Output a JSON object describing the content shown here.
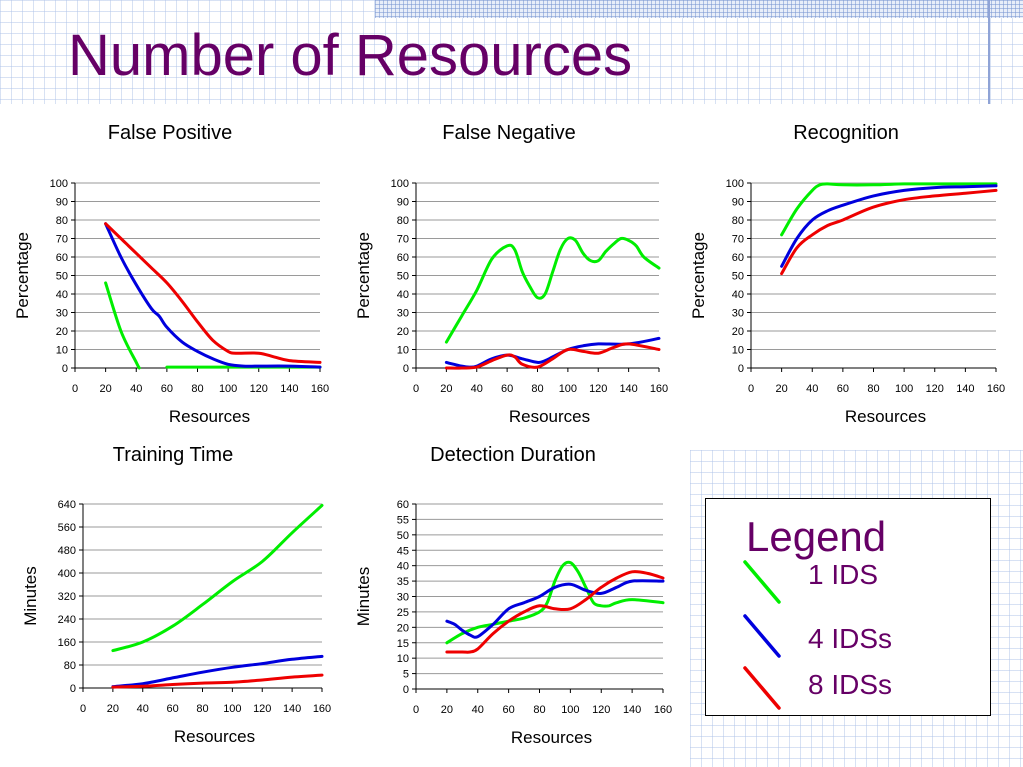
{
  "slide": {
    "title": "Number of Resources"
  },
  "colors": {
    "1 IDS": "#00ee00",
    "4 IDSs": "#0000dd",
    "8 IDSs": "#ee0000",
    "title": "#660066"
  },
  "legend": {
    "title": "Legend",
    "items": [
      {
        "label": "1 IDS",
        "color": "#00ee00"
      },
      {
        "label": "4 IDSs",
        "color": "#0000dd"
      },
      {
        "label": "8 IDSs",
        "color": "#ee0000"
      }
    ]
  },
  "chart_data": [
    {
      "id": "false-positive",
      "type": "line",
      "title": "False Positive",
      "xlabel": "Resources",
      "ylabel": "Percentage",
      "xlim": [
        0,
        160
      ],
      "ylim": [
        0,
        100
      ],
      "xticks": [
        0,
        20,
        40,
        60,
        80,
        100,
        120,
        140,
        160
      ],
      "yticks": [
        0,
        10,
        20,
        30,
        40,
        50,
        60,
        70,
        80,
        90,
        100
      ],
      "grid": true,
      "series": [
        {
          "name": "1 IDS",
          "color": "#00ee00",
          "x": [
            20,
            30,
            40,
            42
          ],
          "y": [
            46,
            20,
            3,
            0
          ]
        },
        {
          "name": "1 IDS",
          "color": "#00ee00",
          "x": [
            60,
            80,
            100,
            120,
            140,
            160
          ],
          "y": [
            0.5,
            0.5,
            0.5,
            0.5,
            0.5,
            0.5
          ]
        },
        {
          "name": "4 IDSs",
          "color": "#0000dd",
          "x": [
            20,
            30,
            40,
            50,
            55,
            60,
            70,
            80,
            90,
            100,
            110,
            120,
            140,
            160
          ],
          "y": [
            78,
            60,
            45,
            32,
            28,
            22,
            14,
            9,
            5,
            2,
            1,
            1,
            1,
            0.5
          ]
        },
        {
          "name": "8 IDSs",
          "color": "#ee0000",
          "x": [
            20,
            30,
            40,
            50,
            60,
            70,
            80,
            90,
            100,
            105,
            120,
            130,
            140,
            160
          ],
          "y": [
            78,
            70,
            62,
            54,
            46,
            36,
            25,
            15,
            9,
            8,
            8,
            6,
            4,
            3
          ]
        }
      ]
    },
    {
      "id": "false-negative",
      "type": "line",
      "title": "False Negative",
      "xlabel": "Resources",
      "ylabel": "Percentage",
      "xlim": [
        0,
        160
      ],
      "ylim": [
        0,
        100
      ],
      "xticks": [
        0,
        20,
        40,
        60,
        80,
        100,
        120,
        140,
        160
      ],
      "yticks": [
        0,
        10,
        20,
        30,
        40,
        50,
        60,
        70,
        80,
        90,
        100
      ],
      "grid": true,
      "series": [
        {
          "name": "1 IDS",
          "color": "#00ee00",
          "x": [
            20,
            30,
            40,
            50,
            60,
            65,
            70,
            75,
            80,
            85,
            90,
            95,
            100,
            105,
            110,
            115,
            120,
            125,
            130,
            135,
            140,
            145,
            150,
            160
          ],
          "y": [
            14,
            28,
            42,
            59,
            66,
            64,
            52,
            44,
            38,
            40,
            52,
            64,
            70,
            69,
            62,
            58,
            58,
            63,
            67,
            70,
            69,
            66,
            60,
            54
          ]
        },
        {
          "name": "4 IDSs",
          "color": "#0000dd",
          "x": [
            20,
            25,
            30,
            35,
            40,
            50,
            60,
            70,
            80,
            85,
            90,
            100,
            110,
            120,
            140,
            160
          ],
          "y": [
            3,
            2,
            1,
            0.5,
            1,
            5,
            7,
            5,
            3,
            4,
            6,
            10,
            12,
            13,
            13,
            16
          ]
        },
        {
          "name": "8 IDSs",
          "color": "#ee0000",
          "x": [
            20,
            30,
            40,
            50,
            60,
            65,
            70,
            80,
            90,
            100,
            110,
            120,
            130,
            140,
            160
          ],
          "y": [
            0,
            0,
            0.5,
            4,
            7,
            6,
            2,
            0.5,
            5,
            10,
            9,
            8,
            11,
            13,
            10
          ]
        }
      ]
    },
    {
      "id": "recognition",
      "type": "line",
      "title": "Recognition",
      "xlabel": "Resources",
      "ylabel": "Percentage",
      "xlim": [
        0,
        160
      ],
      "ylim": [
        0,
        100
      ],
      "xticks": [
        0,
        20,
        40,
        60,
        80,
        100,
        120,
        140,
        160
      ],
      "yticks": [
        0,
        10,
        20,
        30,
        40,
        50,
        60,
        70,
        80,
        90,
        100
      ],
      "grid": true,
      "series": [
        {
          "name": "1 IDS",
          "color": "#00ee00",
          "x": [
            20,
            30,
            40,
            45,
            50,
            60,
            80,
            100,
            120,
            140,
            160
          ],
          "y": [
            72,
            86,
            96,
            99,
            99.5,
            99,
            99,
            99.5,
            99.5,
            99.5,
            99.5
          ]
        },
        {
          "name": "4 IDSs",
          "color": "#0000dd",
          "x": [
            20,
            30,
            40,
            50,
            60,
            80,
            100,
            120,
            140,
            160
          ],
          "y": [
            55,
            70,
            80,
            85,
            88,
            93,
            96,
            97.5,
            98,
            98.5
          ]
        },
        {
          "name": "8 IDSs",
          "color": "#ee0000",
          "x": [
            20,
            30,
            40,
            50,
            60,
            80,
            100,
            120,
            140,
            160
          ],
          "y": [
            51,
            65,
            72,
            77,
            80,
            87,
            91,
            93,
            94.5,
            96
          ]
        }
      ]
    },
    {
      "id": "training-time",
      "type": "line",
      "title": "Training Time",
      "xlabel": "Resources",
      "ylabel": "Minutes",
      "xlim": [
        0,
        160
      ],
      "ylim": [
        0,
        640
      ],
      "xticks": [
        0,
        20,
        40,
        60,
        80,
        100,
        120,
        140,
        160
      ],
      "yticks": [
        0,
        80,
        160,
        240,
        320,
        400,
        480,
        560,
        640
      ],
      "grid": true,
      "series": [
        {
          "name": "1 IDS",
          "color": "#00ee00",
          "x": [
            20,
            40,
            60,
            80,
            100,
            120,
            140,
            160
          ],
          "y": [
            130,
            160,
            215,
            290,
            370,
            440,
            540,
            635
          ]
        },
        {
          "name": "4 IDSs",
          "color": "#0000dd",
          "x": [
            20,
            40,
            60,
            80,
            100,
            120,
            140,
            160
          ],
          "y": [
            5,
            15,
            35,
            55,
            72,
            85,
            100,
            110
          ]
        },
        {
          "name": "8 IDSs",
          "color": "#ee0000",
          "x": [
            20,
            40,
            60,
            80,
            100,
            120,
            140,
            160
          ],
          "y": [
            3,
            6,
            12,
            17,
            20,
            28,
            38,
            45
          ]
        }
      ]
    },
    {
      "id": "detection-duration",
      "type": "line",
      "title": "Detection Duration",
      "xlabel": "Resources",
      "ylabel": "Minutes",
      "xlim": [
        0,
        160
      ],
      "ylim": [
        0,
        60
      ],
      "xticks": [
        0,
        20,
        40,
        60,
        80,
        100,
        120,
        140,
        160
      ],
      "yticks": [
        0,
        5,
        10,
        15,
        20,
        25,
        30,
        35,
        40,
        45,
        50,
        55,
        60
      ],
      "grid": true,
      "series": [
        {
          "name": "1 IDS",
          "color": "#00ee00",
          "x": [
            20,
            30,
            40,
            50,
            60,
            70,
            80,
            85,
            90,
            95,
            100,
            105,
            110,
            115,
            120,
            125,
            130,
            140,
            160
          ],
          "y": [
            15,
            18,
            20,
            21,
            22,
            23,
            25,
            28,
            35,
            40,
            41,
            38,
            33,
            28,
            27,
            27,
            28,
            29,
            28
          ]
        },
        {
          "name": "4 IDSs",
          "color": "#0000dd",
          "x": [
            20,
            25,
            30,
            35,
            40,
            50,
            60,
            70,
            80,
            90,
            100,
            110,
            120,
            130,
            140,
            160
          ],
          "y": [
            22,
            21,
            19,
            17.5,
            17,
            21,
            26,
            28,
            30,
            33,
            34,
            32,
            31,
            33,
            35,
            35
          ]
        },
        {
          "name": "8 IDSs",
          "color": "#ee0000",
          "x": [
            20,
            30,
            35,
            40,
            50,
            60,
            70,
            80,
            90,
            100,
            110,
            120,
            130,
            140,
            150,
            160
          ],
          "y": [
            12,
            12,
            12,
            13,
            18,
            22,
            25,
            27,
            26,
            26,
            29,
            33,
            36,
            38,
            37.5,
            36
          ]
        }
      ]
    }
  ]
}
